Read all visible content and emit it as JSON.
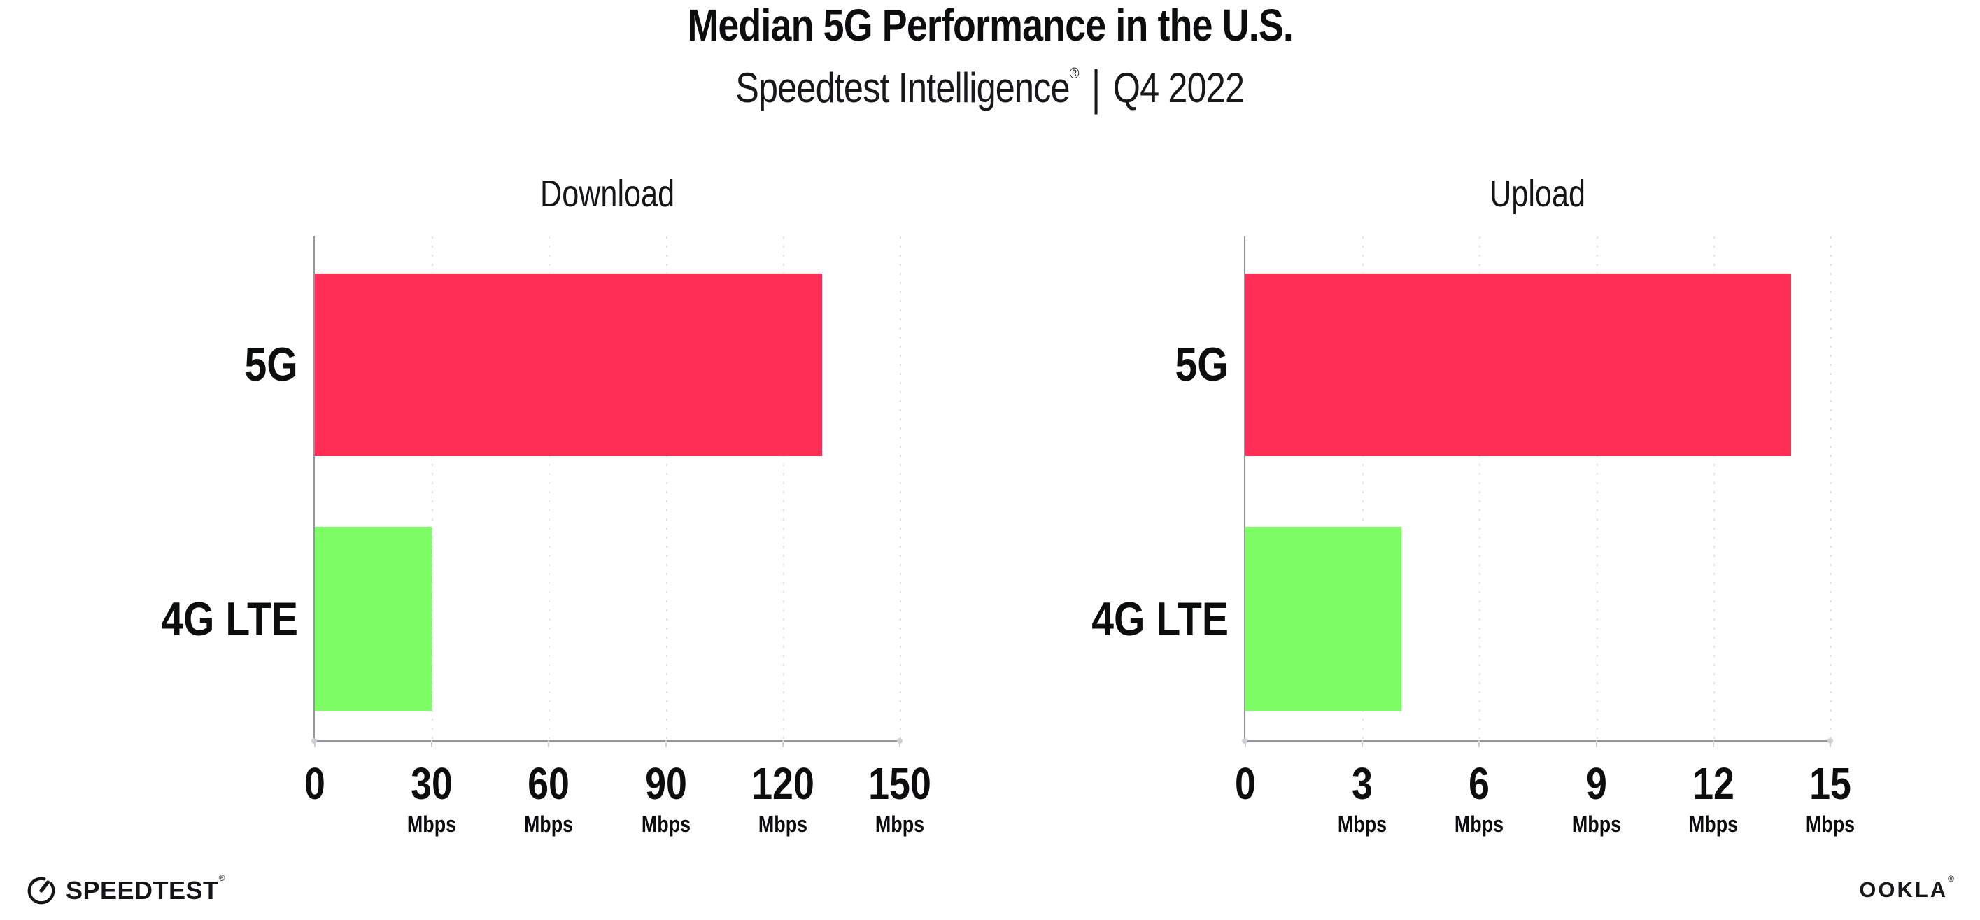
{
  "header": {
    "title": "Median 5G Performance in the U.S.",
    "subtitle_brand": "Speedtest Intelligence",
    "subtitle_reg": "®",
    "subtitle_separator": "|",
    "subtitle_period": "Q4 2022"
  },
  "footer": {
    "speedtest_logo_text": "SPEEDTEST",
    "speedtest_logo_mark": "®",
    "ookla_logo_text": "OOKLA",
    "ookla_logo_mark": "®"
  },
  "colors": {
    "bar_5g": "#ff2e56",
    "bar_4g_lte": "#7dfc66",
    "grid": "#e3e4e8",
    "axis": "#94989e",
    "tick": "#cdd1d6",
    "text": "#0c0d0f"
  },
  "chart_data": [
    {
      "type": "bar",
      "orientation": "horizontal",
      "title": "Download",
      "categories": [
        "5G",
        "4G LTE"
      ],
      "values": [
        130,
        30
      ],
      "unit": "Mbps",
      "xlim": [
        0,
        150
      ],
      "xticks": [
        0,
        30,
        60,
        90,
        120,
        150
      ],
      "bar_colors": [
        "#ff2e56",
        "#7dfc66"
      ],
      "grid": "vertical-dotted",
      "legend": "none"
    },
    {
      "type": "bar",
      "orientation": "horizontal",
      "title": "Upload",
      "categories": [
        "5G",
        "4G LTE"
      ],
      "values": [
        14,
        4
      ],
      "unit": "Mbps",
      "xlim": [
        0,
        15
      ],
      "xticks": [
        0,
        3,
        6,
        9,
        12,
        15
      ],
      "bar_colors": [
        "#ff2e56",
        "#7dfc66"
      ],
      "grid": "vertical-dotted",
      "legend": "none"
    }
  ]
}
